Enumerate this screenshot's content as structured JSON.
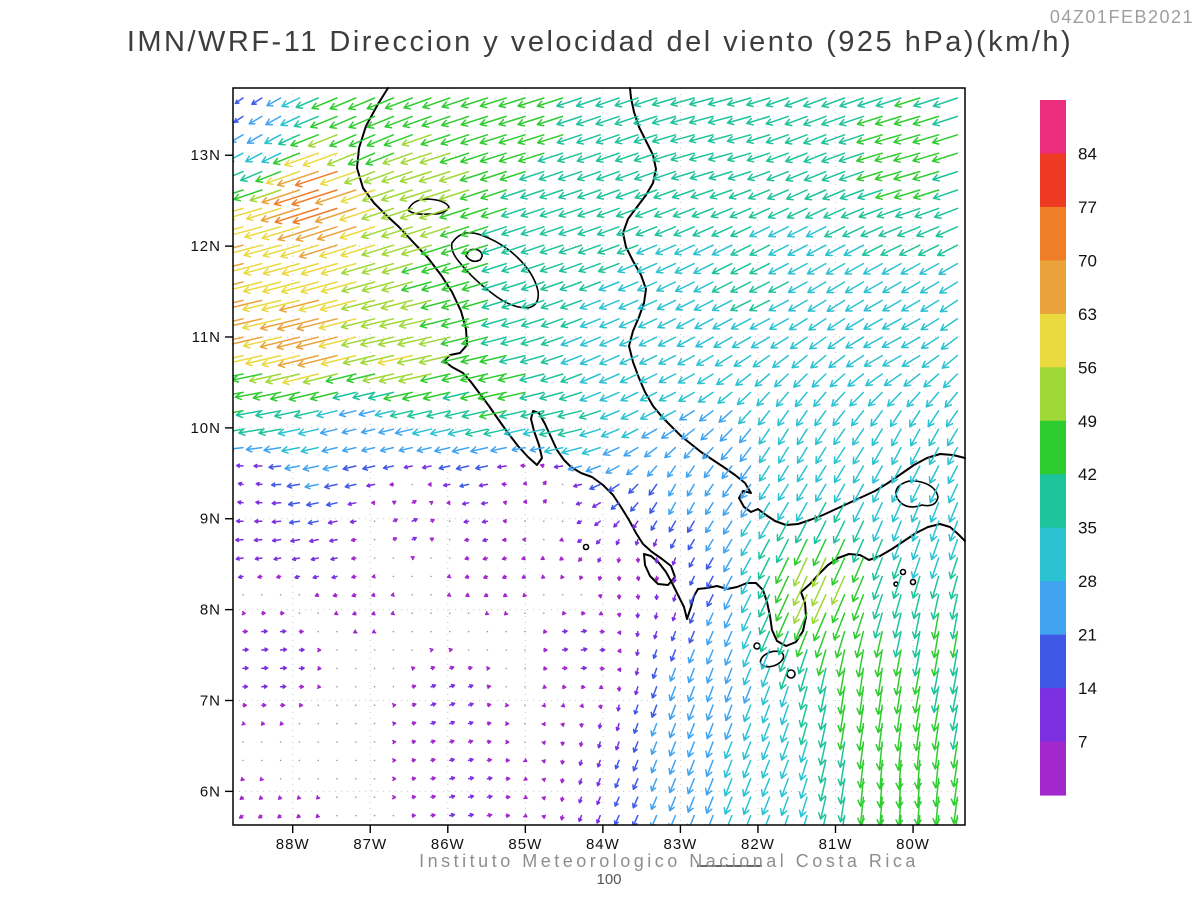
{
  "header": {
    "timestamp": "04Z01FEB2021",
    "title": "IMN/WRF-11 Direccion y velocidad del viento (925 hPa)(km/h)"
  },
  "footer": {
    "credit": "Instituto Meteorologico Nacional Costa Rica",
    "reference_vector_label": "100"
  },
  "map": {
    "lat_tick_labels": [
      "13N",
      "12N",
      "11N",
      "10N",
      "9N",
      "8N",
      "7N",
      "6N"
    ],
    "lon_tick_labels": [
      "88W",
      "87W",
      "86W",
      "85W",
      "84W",
      "83W",
      "82W",
      "81W",
      "80W"
    ]
  },
  "colorbar": {
    "labels_top_to_bottom": [
      "84",
      "77",
      "70",
      "63",
      "56",
      "49",
      "42",
      "35",
      "28",
      "21",
      "14",
      "7"
    ],
    "colors_top_to_bottom": [
      "#ec2d7e",
      "#ee3a23",
      "#f07d27",
      "#eaa33a",
      "#ead93f",
      "#a0d838",
      "#2fcc30",
      "#1dc39b",
      "#2bc2d2",
      "#41a4f0",
      "#3f59e6",
      "#7b2fe0",
      "#a228cc"
    ]
  },
  "chart_data": {
    "type": "vector_field",
    "title": "IMN/WRF-11 Direccion y velocidad del viento",
    "level_hpa": 925,
    "units": "km/h",
    "valid_time": "04Z01FEB2021",
    "lon_range": [
      -88.77,
      -79.33
    ],
    "lat_range": [
      5.63,
      13.74
    ],
    "lat_ticks": [
      13,
      12,
      11,
      10,
      9,
      8,
      7,
      6
    ],
    "lon_ticks": [
      -88,
      -87,
      -86,
      -85,
      -84,
      -83,
      -82,
      -81,
      -80
    ],
    "speed_levels_kmh": [
      7,
      14,
      21,
      28,
      35,
      42,
      49,
      56,
      63,
      70,
      77,
      84
    ],
    "reference_vector_kmh": 100,
    "wind_samples": [
      {
        "lon": -88.6,
        "lat": 13.55,
        "u": -10,
        "v": -8
      },
      {
        "lon": -88.35,
        "lat": 13.3,
        "u": -24,
        "v": -14
      },
      {
        "lon": -87.0,
        "lat": 13.2,
        "u": -40,
        "v": -18
      },
      {
        "lon": -85.0,
        "lat": 13.4,
        "u": -42,
        "v": -13
      },
      {
        "lon": -82.5,
        "lat": 13.3,
        "u": -38,
        "v": -10
      },
      {
        "lon": -80.0,
        "lat": 13.0,
        "u": -42,
        "v": -12
      },
      {
        "lon": -87.5,
        "lat": 12.6,
        "u": -75,
        "v": -24
      },
      {
        "lon": -86.2,
        "lat": 12.7,
        "u": -50,
        "v": -16
      },
      {
        "lon": -84.5,
        "lat": 12.3,
        "u": -36,
        "v": -12
      },
      {
        "lon": -88.6,
        "lat": 12.0,
        "u": -62,
        "v": -16
      },
      {
        "lon": -88.6,
        "lat": 11.2,
        "u": -66,
        "v": -15
      },
      {
        "lon": -87.6,
        "lat": 11.0,
        "u": -68,
        "v": -17
      },
      {
        "lon": -86.4,
        "lat": 10.8,
        "u": -56,
        "v": -12
      },
      {
        "lon": -85.2,
        "lat": 10.4,
        "u": -46,
        "v": -10
      },
      {
        "lon": -84.4,
        "lat": 10.1,
        "u": -40,
        "v": -9
      },
      {
        "lon": -84.0,
        "lat": 10.6,
        "u": -32,
        "v": -14
      },
      {
        "lon": -83.3,
        "lat": 10.4,
        "u": -26,
        "v": -13
      },
      {
        "lon": -82.0,
        "lat": 11.5,
        "u": -32,
        "v": -16
      },
      {
        "lon": -80.2,
        "lat": 11.0,
        "u": -30,
        "v": -16
      },
      {
        "lon": -80.0,
        "lat": 9.8,
        "u": -14,
        "v": -27
      },
      {
        "lon": -81.5,
        "lat": 9.8,
        "u": -15,
        "v": -25
      },
      {
        "lon": -83.0,
        "lat": 9.3,
        "u": -10,
        "v": -19
      },
      {
        "lon": -88.6,
        "lat": 10.2,
        "u": -42,
        "v": -7
      },
      {
        "lon": -88.6,
        "lat": 9.4,
        "u": -6,
        "v": 2
      },
      {
        "lon": -87.0,
        "lat": 9.9,
        "u": -20,
        "v": -5
      },
      {
        "lon": -86.5,
        "lat": 9.0,
        "u": 9,
        "v": 4
      },
      {
        "lon": -88.3,
        "lat": 7.5,
        "u": 10,
        "v": 1
      },
      {
        "lon": -86.0,
        "lat": 7.0,
        "u": 8,
        "v": 3
      },
      {
        "lon": -85.8,
        "lat": 6.0,
        "u": 8,
        "v": 2
      },
      {
        "lon": -84.3,
        "lat": 7.6,
        "u": 9,
        "v": 2
      },
      {
        "lon": -84.8,
        "lat": 9.3,
        "u": 6,
        "v": 6
      },
      {
        "lon": -83.5,
        "lat": 8.4,
        "u": 2,
        "v": -6
      },
      {
        "lon": -82.7,
        "lat": 7.0,
        "u": -9,
        "v": -24
      },
      {
        "lon": -82.0,
        "lat": 6.3,
        "u": -11,
        "v": -28
      },
      {
        "lon": -81.2,
        "lat": 8.35,
        "u": -22,
        "v": -48
      },
      {
        "lon": -80.6,
        "lat": 7.2,
        "u": -6,
        "v": -45
      },
      {
        "lon": -80.2,
        "lat": 6.2,
        "u": -3,
        "v": -47
      },
      {
        "lon": -79.6,
        "lat": 7.8,
        "u": -7,
        "v": -42
      },
      {
        "lon": -79.8,
        "lat": 8.8,
        "u": -11,
        "v": -32
      }
    ]
  }
}
